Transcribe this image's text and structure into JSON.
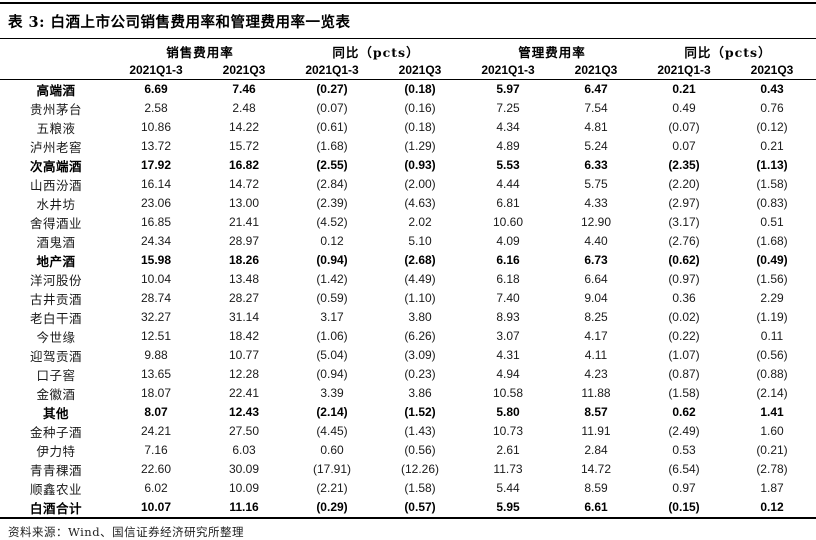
{
  "title": "表 3: 白酒上市公司销售费用率和管理费用率一览表",
  "headers": {
    "groups": [
      "销售费用率",
      "同比（pcts）",
      "管理费用率",
      "同比（pcts）"
    ],
    "periods": [
      "2021Q1-3",
      "2021Q3",
      "2021Q1-3",
      "2021Q3",
      "2021Q1-3",
      "2021Q3",
      "2021Q1-3",
      "2021Q3"
    ]
  },
  "table": {
    "rows": [
      {
        "name": "高端酒",
        "bold": true,
        "values": [
          "6.69",
          "7.46",
          "(0.27)",
          "(0.18)",
          "5.97",
          "6.47",
          "0.21",
          "0.43"
        ]
      },
      {
        "name": "贵州茅台",
        "bold": false,
        "values": [
          "2.58",
          "2.48",
          "(0.07)",
          "(0.16)",
          "7.25",
          "7.54",
          "0.49",
          "0.76"
        ]
      },
      {
        "name": "五粮液",
        "bold": false,
        "values": [
          "10.86",
          "14.22",
          "(0.61)",
          "(0.18)",
          "4.34",
          "4.81",
          "(0.07)",
          "(0.12)"
        ]
      },
      {
        "name": "泸州老窖",
        "bold": false,
        "values": [
          "13.72",
          "15.72",
          "(1.68)",
          "(1.29)",
          "4.89",
          "5.24",
          "0.07",
          "0.21"
        ]
      },
      {
        "name": "次高端酒",
        "bold": true,
        "values": [
          "17.92",
          "16.82",
          "(2.55)",
          "(0.93)",
          "5.53",
          "6.33",
          "(2.35)",
          "(1.13)"
        ]
      },
      {
        "name": "山西汾酒",
        "bold": false,
        "values": [
          "16.14",
          "14.72",
          "(2.84)",
          "(2.00)",
          "4.44",
          "5.75",
          "(2.20)",
          "(1.58)"
        ]
      },
      {
        "name": "水井坊",
        "bold": false,
        "values": [
          "23.06",
          "13.00",
          "(2.39)",
          "(4.63)",
          "6.81",
          "4.33",
          "(2.97)",
          "(0.83)"
        ]
      },
      {
        "name": "舍得酒业",
        "bold": false,
        "values": [
          "16.85",
          "21.41",
          "(4.52)",
          "2.02",
          "10.60",
          "12.90",
          "(3.17)",
          "0.51"
        ]
      },
      {
        "name": "酒鬼酒",
        "bold": false,
        "values": [
          "24.34",
          "28.97",
          "0.12",
          "5.10",
          "4.09",
          "4.40",
          "(2.76)",
          "(1.68)"
        ]
      },
      {
        "name": "地产酒",
        "bold": true,
        "values": [
          "15.98",
          "18.26",
          "(0.94)",
          "(2.68)",
          "6.16",
          "6.73",
          "(0.62)",
          "(0.49)"
        ]
      },
      {
        "name": "洋河股份",
        "bold": false,
        "values": [
          "10.04",
          "13.48",
          "(1.42)",
          "(4.49)",
          "6.18",
          "6.64",
          "(0.97)",
          "(1.56)"
        ]
      },
      {
        "name": "古井贡酒",
        "bold": false,
        "values": [
          "28.74",
          "28.27",
          "(0.59)",
          "(1.10)",
          "7.40",
          "9.04",
          "0.36",
          "2.29"
        ]
      },
      {
        "name": "老白干酒",
        "bold": false,
        "values": [
          "32.27",
          "31.14",
          "3.17",
          "3.80",
          "8.93",
          "8.25",
          "(0.02)",
          "(1.19)"
        ]
      },
      {
        "name": "今世缘",
        "bold": false,
        "values": [
          "12.51",
          "18.42",
          "(1.06)",
          "(6.26)",
          "3.07",
          "4.17",
          "(0.22)",
          "0.11"
        ]
      },
      {
        "name": "迎驾贡酒",
        "bold": false,
        "values": [
          "9.88",
          "10.77",
          "(5.04)",
          "(3.09)",
          "4.31",
          "4.11",
          "(1.07)",
          "(0.56)"
        ]
      },
      {
        "name": "口子窖",
        "bold": false,
        "values": [
          "13.65",
          "12.28",
          "(0.94)",
          "(0.23)",
          "4.94",
          "4.23",
          "(0.87)",
          "(0.88)"
        ]
      },
      {
        "name": "金徽酒",
        "bold": false,
        "values": [
          "18.07",
          "22.41",
          "3.39",
          "3.86",
          "10.58",
          "11.88",
          "(1.58)",
          "(2.14)"
        ]
      },
      {
        "name": "其他",
        "bold": true,
        "values": [
          "8.07",
          "12.43",
          "(2.14)",
          "(1.52)",
          "5.80",
          "8.57",
          "0.62",
          "1.41"
        ]
      },
      {
        "name": "金种子酒",
        "bold": false,
        "values": [
          "24.21",
          "27.50",
          "(4.45)",
          "(1.43)",
          "10.73",
          "11.91",
          "(2.49)",
          "1.60"
        ]
      },
      {
        "name": "伊力特",
        "bold": false,
        "values": [
          "7.16",
          "6.03",
          "0.60",
          "(0.56)",
          "2.61",
          "2.84",
          "0.53",
          "(0.21)"
        ]
      },
      {
        "name": "青青稞酒",
        "bold": false,
        "values": [
          "22.60",
          "30.09",
          "(17.91)",
          "(12.26)",
          "11.73",
          "14.72",
          "(6.54)",
          "(2.78)"
        ]
      },
      {
        "name": "顺鑫农业",
        "bold": false,
        "values": [
          "6.02",
          "10.09",
          "(2.21)",
          "(1.58)",
          "5.44",
          "8.59",
          "0.97",
          "1.87"
        ]
      },
      {
        "name": "白酒合计",
        "bold": true,
        "values": [
          "10.07",
          "11.16",
          "(0.29)",
          "(0.57)",
          "5.95",
          "6.61",
          "(0.15)",
          "0.12"
        ]
      }
    ]
  },
  "source": "资料来源：Wind、国信证券经济研究所整理",
  "colors": {
    "background": "#ffffff",
    "text": "#1a1a1a",
    "rule": "#000000"
  }
}
